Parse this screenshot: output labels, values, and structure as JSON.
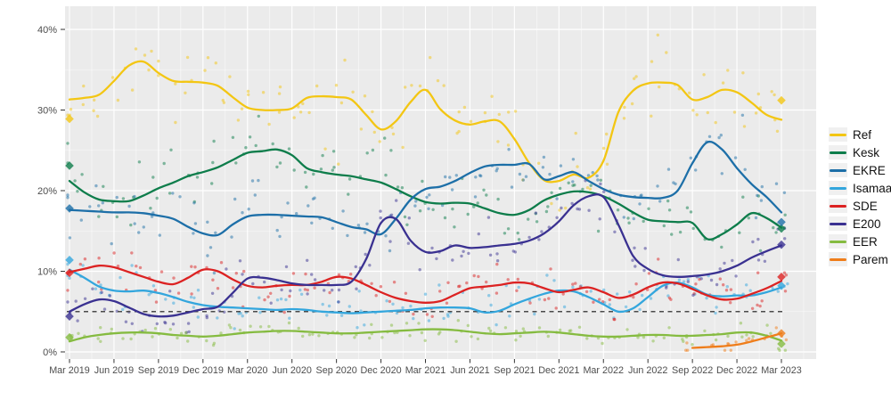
{
  "page": {
    "background": "#ffffff"
  },
  "chart_data": {
    "type": "scatter",
    "subtype": "polls-with-smoothed-trend-lines",
    "title": "",
    "x_axis": {
      "label": "",
      "tick_labels": [
        "Mar 2019",
        "Jun 2019",
        "Sep 2019",
        "Dec 2019",
        "Mar 2020",
        "Jun 2020",
        "Sep 2020",
        "Dec 2020",
        "Mar 2021",
        "Jun 2021",
        "Sep 2021",
        "Dec 2021",
        "Mar 2022",
        "Jun 2022",
        "Sep 2022",
        "Dec 2022",
        "Mar 2023"
      ],
      "months_per_tick": 3,
      "resolution": "monthly"
    },
    "y_axis": {
      "label": "",
      "tick_labels": [
        "0%",
        "10%",
        "20%",
        "30%",
        "40%"
      ],
      "major_ticks": [
        0,
        10,
        20,
        30,
        40
      ],
      "minor_ticks": [
        5,
        15,
        25,
        35
      ],
      "range_shown": [
        -1.2,
        42.8
      ]
    },
    "threshold_line": {
      "value": 5,
      "style": "dashed",
      "color": "#4a4a4a"
    },
    "panel": {
      "background": "#ebebeb",
      "grid_color": "#ffffff"
    },
    "legend": {
      "position": "right",
      "entries": [
        "Ref",
        "Kesk",
        "EKRE",
        "Isamaa",
        "SDE",
        "E200",
        "EER",
        "Parem"
      ]
    },
    "series": [
      {
        "name": "Ref",
        "color": "#f3c613",
        "start_month": 0,
        "scatter_sd": 2.2,
        "monthly_pct": [
          31.3,
          31.5,
          31.9,
          33.6,
          35.5,
          36.0,
          34.6,
          33.6,
          33.5,
          33.4,
          33.0,
          31.6,
          30.3,
          30.0,
          30.0,
          30.2,
          31.5,
          31.7,
          31.6,
          31.3,
          29.4,
          27.6,
          28.6,
          31.0,
          32.5,
          30.1,
          28.7,
          28.2,
          28.6,
          28.6,
          26.4,
          23.4,
          21.3,
          21.2,
          22.0,
          21.6,
          23.7,
          29.7,
          32.4,
          33.3,
          33.4,
          33.1,
          31.3,
          31.6,
          32.5,
          32.2,
          30.9,
          29.4,
          28.8
        ],
        "election_2019": 28.9,
        "election_2023": 31.2
      },
      {
        "name": "Kesk",
        "color": "#0e7d4b",
        "start_month": 0,
        "scatter_sd": 1.9,
        "monthly_pct": [
          21.2,
          19.8,
          18.9,
          18.7,
          18.7,
          19.4,
          20.3,
          21.0,
          21.8,
          22.3,
          22.9,
          23.8,
          24.7,
          24.9,
          25.1,
          24.4,
          22.8,
          22.3,
          22.0,
          21.8,
          21.4,
          21.0,
          20.2,
          19.3,
          18.6,
          18.4,
          18.5,
          18.4,
          17.8,
          17.2,
          17.0,
          17.6,
          18.8,
          19.5,
          19.9,
          19.8,
          19.3,
          18.4,
          17.3,
          16.4,
          16.2,
          16.1,
          16.0,
          14.0,
          14.6,
          15.8,
          17.2,
          16.6,
          15.4
        ],
        "election_2019": 23.1,
        "election_2023": 15.3
      },
      {
        "name": "EKRE",
        "color": "#1d6fa8",
        "start_month": 0,
        "scatter_sd": 1.9,
        "monthly_pct": [
          17.6,
          17.5,
          17.4,
          17.3,
          17.3,
          17.2,
          16.9,
          16.5,
          15.5,
          14.7,
          14.5,
          15.8,
          16.8,
          17.0,
          17.0,
          16.9,
          16.8,
          16.7,
          16.1,
          15.5,
          15.2,
          14.6,
          16.5,
          18.9,
          20.2,
          20.5,
          21.2,
          22.2,
          23.0,
          23.2,
          23.2,
          23.3,
          21.4,
          21.8,
          22.3,
          21.2,
          20.2,
          19.5,
          19.2,
          19.1,
          19.1,
          20.0,
          23.4,
          26.0,
          25.1,
          22.8,
          20.8,
          19.2,
          17.3
        ],
        "election_2019": 17.8,
        "election_2023": 16.1
      },
      {
        "name": "Isamaa",
        "color": "#33a6dd",
        "start_month": 0,
        "scatter_sd": 1.4,
        "monthly_pct": [
          10.2,
          9.2,
          8.1,
          7.6,
          7.5,
          7.6,
          7.3,
          6.8,
          6.2,
          5.8,
          5.6,
          5.5,
          5.4,
          5.3,
          5.2,
          5.3,
          5.2,
          5.0,
          4.9,
          4.8,
          4.9,
          5.0,
          5.1,
          5.2,
          5.4,
          5.5,
          5.5,
          5.4,
          4.9,
          5.1,
          5.9,
          6.6,
          7.2,
          7.6,
          7.5,
          6.8,
          5.9,
          5.0,
          5.4,
          6.8,
          8.2,
          8.6,
          8.0,
          7.1,
          6.9,
          7.0,
          7.0,
          7.4,
          8.0
        ],
        "election_2019": 11.4,
        "election_2023": 8.2
      },
      {
        "name": "SDE",
        "color": "#dc2222",
        "start_month": 0,
        "scatter_sd": 1.3,
        "monthly_pct": [
          9.9,
          10.3,
          10.7,
          10.5,
          9.9,
          9.3,
          8.7,
          8.4,
          9.2,
          10.2,
          10.0,
          9.0,
          8.2,
          8.0,
          8.2,
          8.3,
          8.3,
          8.7,
          9.3,
          9.1,
          8.3,
          7.4,
          6.7,
          6.3,
          6.1,
          6.3,
          7.1,
          7.9,
          8.1,
          8.3,
          8.6,
          8.5,
          7.9,
          7.4,
          7.7,
          8.0,
          7.4,
          6.7,
          7.1,
          8.0,
          8.6,
          8.5,
          7.8,
          7.0,
          6.5,
          6.6,
          7.2,
          7.9,
          8.8
        ],
        "election_2019": 9.8,
        "election_2023": 9.3
      },
      {
        "name": "E200",
        "color": "#3a3191",
        "start_month": 0,
        "scatter_sd": 1.6,
        "monthly_pct": [
          5.0,
          5.9,
          6.5,
          6.3,
          5.5,
          4.7,
          4.4,
          4.5,
          4.9,
          5.3,
          5.6,
          7.3,
          9.1,
          9.2,
          8.9,
          8.5,
          8.3,
          8.3,
          8.3,
          8.7,
          11.5,
          16.0,
          16.5,
          13.8,
          12.4,
          12.5,
          13.2,
          12.9,
          13.0,
          13.2,
          13.4,
          13.8,
          14.7,
          16.2,
          18.2,
          19.3,
          19.2,
          15.8,
          11.9,
          10.3,
          9.5,
          9.3,
          9.4,
          9.6,
          10.0,
          10.7,
          11.7,
          12.5,
          13.2
        ],
        "election_2019": 4.4,
        "election_2023": 13.3
      },
      {
        "name": "EER",
        "color": "#85bb40",
        "start_month": 0,
        "scatter_sd": 0.6,
        "monthly_pct": [
          1.3,
          1.8,
          2.1,
          2.3,
          2.4,
          2.4,
          2.3,
          2.1,
          2.0,
          1.9,
          2.0,
          2.2,
          2.4,
          2.5,
          2.6,
          2.6,
          2.5,
          2.4,
          2.3,
          2.3,
          2.4,
          2.5,
          2.6,
          2.7,
          2.8,
          2.8,
          2.7,
          2.5,
          2.3,
          2.2,
          2.3,
          2.4,
          2.5,
          2.4,
          2.2,
          2.0,
          1.9,
          1.9,
          2.0,
          2.1,
          2.1,
          2.0,
          2.0,
          2.1,
          2.2,
          2.4,
          2.4,
          2.0,
          1.4
        ],
        "election_2019": 1.8,
        "election_2023": 1.0
      },
      {
        "name": "Parem",
        "color": "#ef7d1a",
        "start_month": 42,
        "scatter_sd": 0.5,
        "monthly_pct": [
          0.5,
          0.6,
          0.7,
          0.9,
          1.3,
          1.8,
          2.3
        ],
        "election_2019": null,
        "election_2023": 2.3
      }
    ],
    "scatter_style": {
      "points_per_month": 2.5,
      "opacity": 0.5,
      "radius": 1.7,
      "seed": 11
    }
  }
}
